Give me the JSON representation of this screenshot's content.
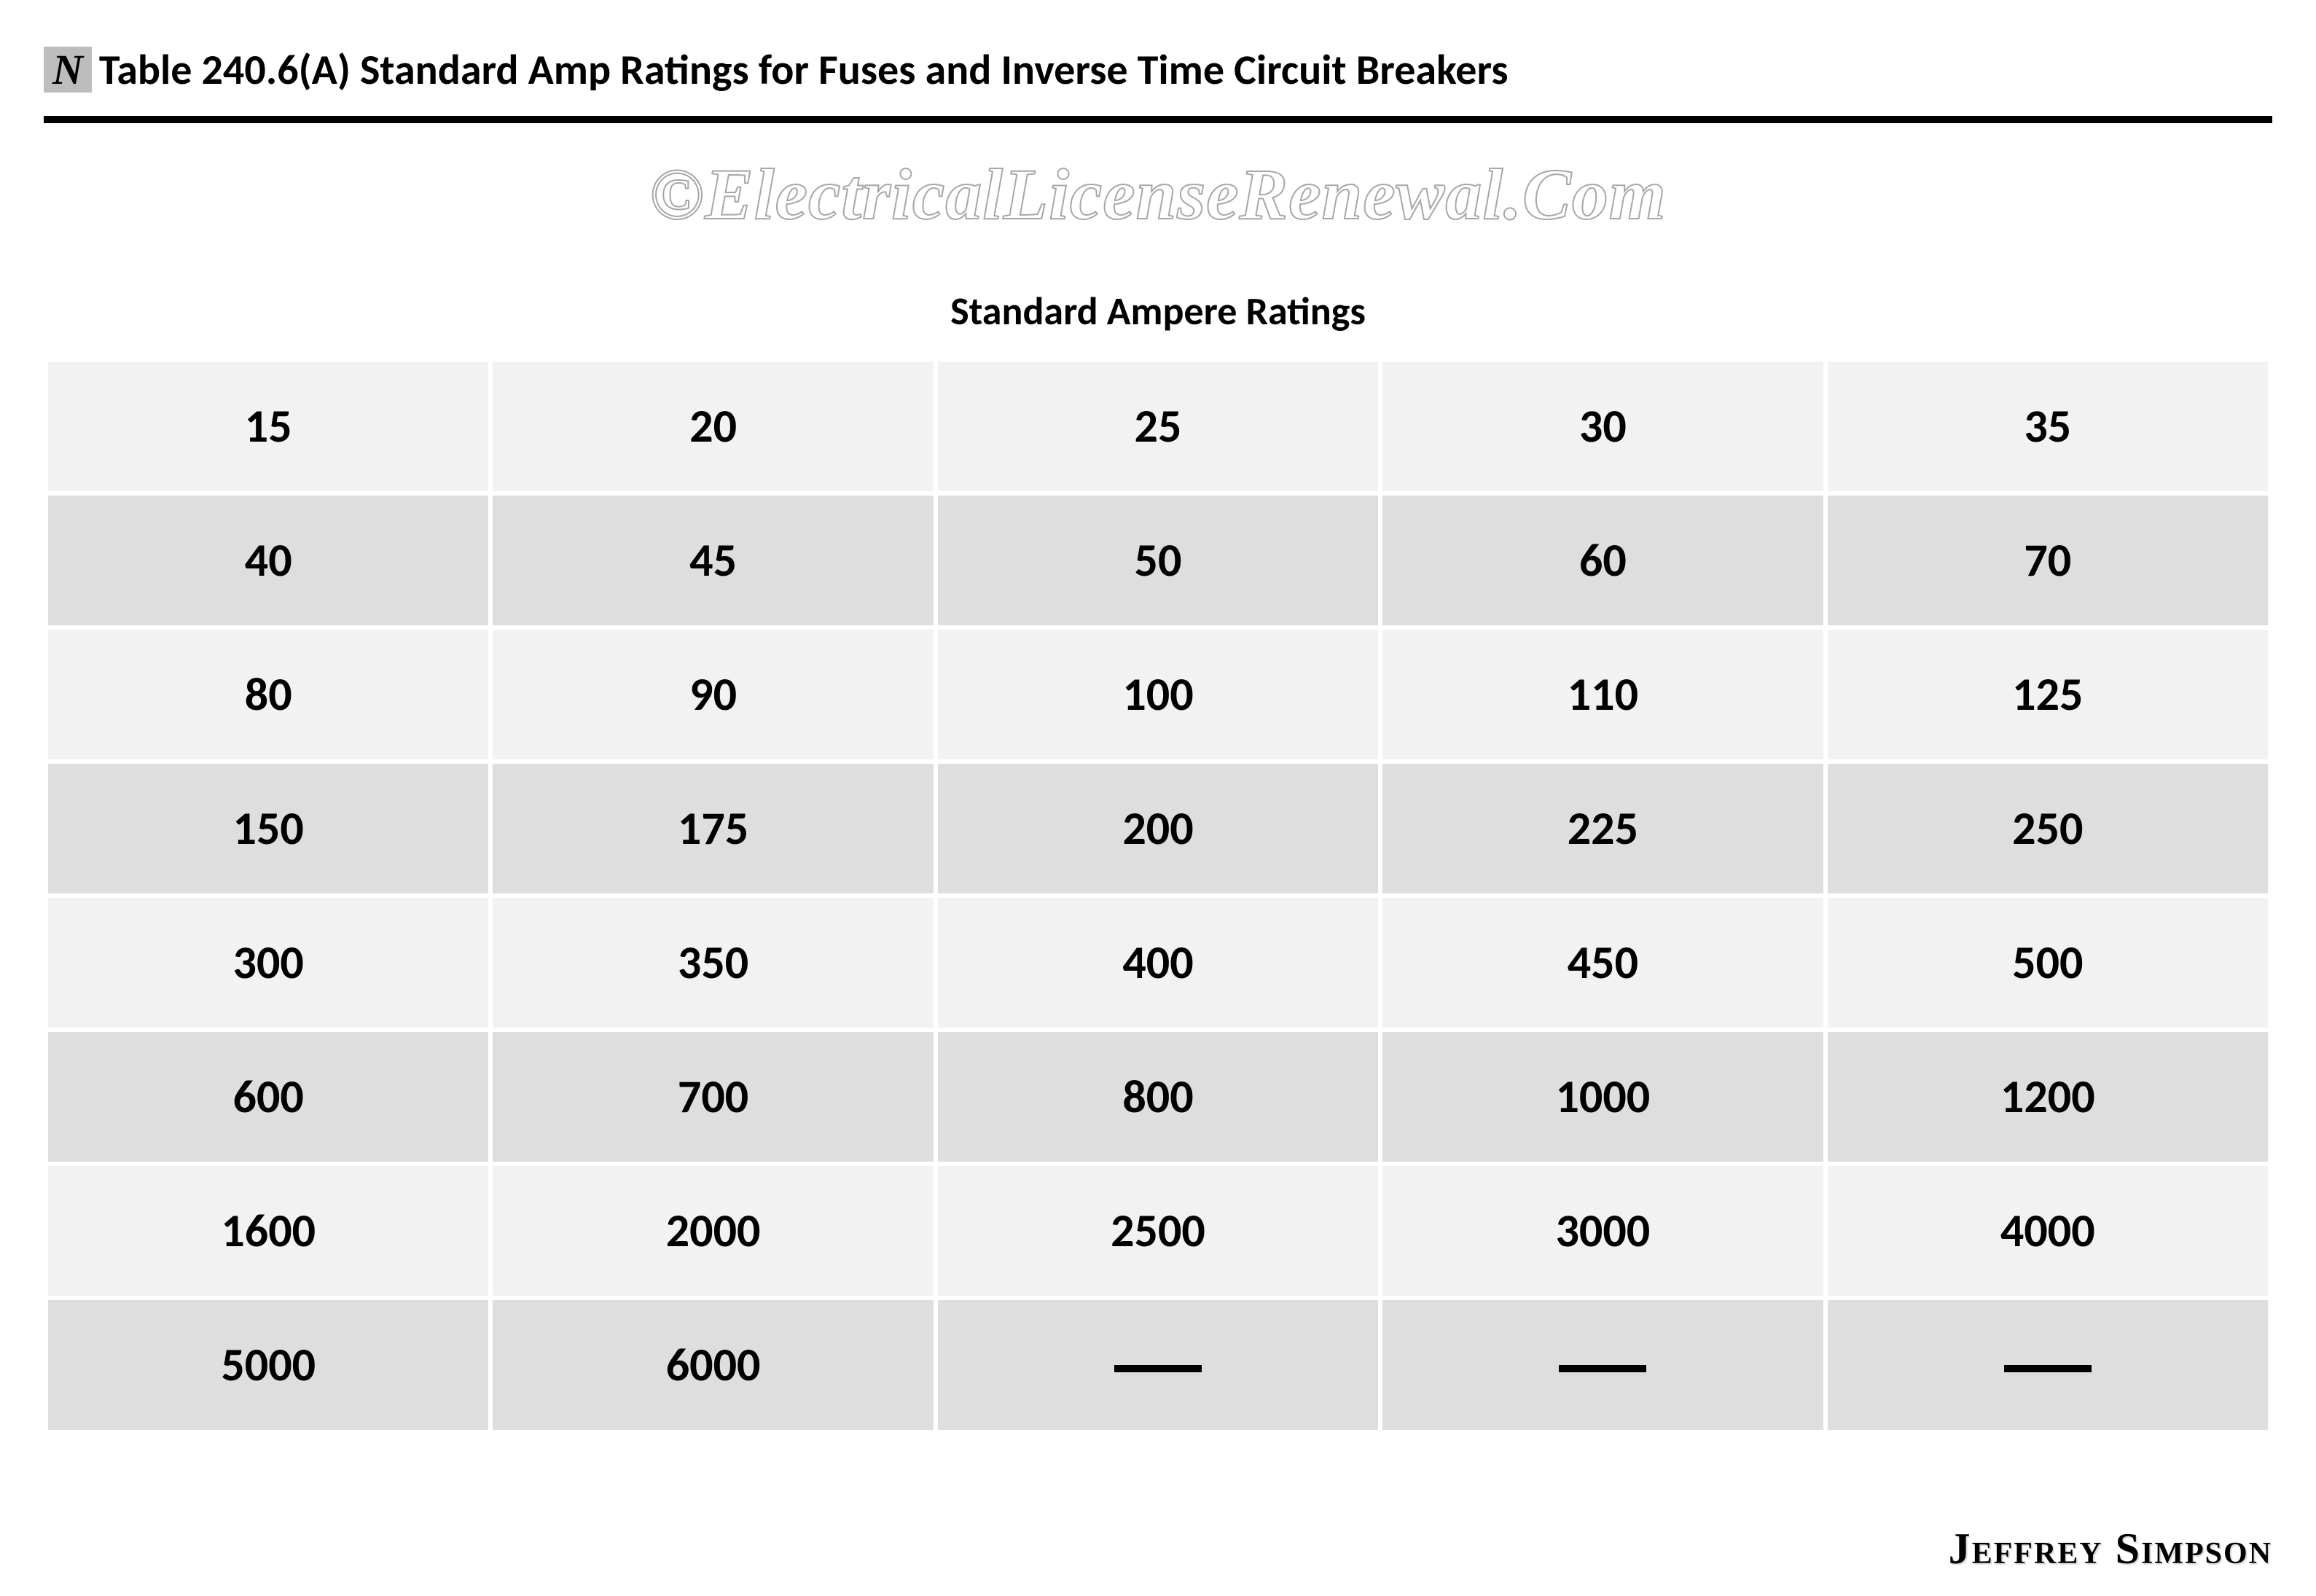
{
  "title": {
    "badge": "N",
    "text": "Table 240.6(A) Standard Amp Ratings for Fuses and Inverse Time Circuit Breakers"
  },
  "watermark": "©ElectricalLicenseRenewal.Com",
  "caption": "Standard Ampere Ratings",
  "table": {
    "type": "table",
    "columns": 5,
    "row_colors": {
      "light": "#f2f2f2",
      "dark": "#dedede"
    },
    "border_color": "#ffffff",
    "text_color": "#000000",
    "cell_fontsize": 64,
    "rows": [
      [
        "15",
        "20",
        "25",
        "30",
        "35"
      ],
      [
        "40",
        "45",
        "50",
        "60",
        "70"
      ],
      [
        "80",
        "90",
        "100",
        "110",
        "125"
      ],
      [
        "150",
        "175",
        "200",
        "225",
        "250"
      ],
      [
        "300",
        "350",
        "400",
        "450",
        "500"
      ],
      [
        "600",
        "700",
        "800",
        "1000",
        "1200"
      ],
      [
        "1600",
        "2000",
        "2500",
        "3000",
        "4000"
      ],
      [
        "5000",
        "6000",
        "—",
        "—",
        "—"
      ]
    ]
  },
  "author": "Jeffrey Simpson",
  "colors": {
    "background": "#ffffff",
    "rule": "#000000",
    "badge_bg": "#bdbdbd",
    "watermark_stroke": "#a7a7a7"
  }
}
